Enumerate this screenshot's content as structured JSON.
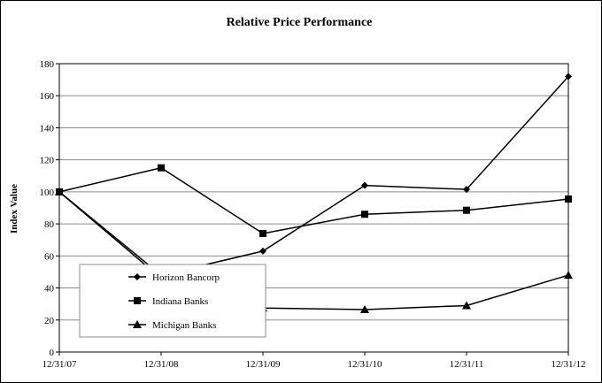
{
  "chart_data": {
    "type": "line",
    "title": "Relative Price Performance",
    "xlabel": "",
    "ylabel": "Index Value",
    "categories": [
      "12/31/07",
      "12/31/08",
      "12/31/09",
      "12/31/10",
      "12/31/11",
      "12/31/12"
    ],
    "ylim": [
      0,
      180
    ],
    "yticks": [
      0,
      20,
      40,
      60,
      80,
      100,
      120,
      140,
      160,
      180
    ],
    "grid": true,
    "legend_position": "lower-left",
    "series": [
      {
        "name": "Horizon Bancorp",
        "marker": "diamond",
        "values": [
          100,
          48,
          63,
          104,
          101.5,
          172
        ]
      },
      {
        "name": "Indiana Banks",
        "marker": "square",
        "values": [
          100,
          115,
          74,
          86,
          88.5,
          95.5
        ]
      },
      {
        "name": "Michigan Banks",
        "marker": "triangle",
        "values": [
          100,
          46,
          27.5,
          26.5,
          29,
          48
        ]
      }
    ]
  }
}
